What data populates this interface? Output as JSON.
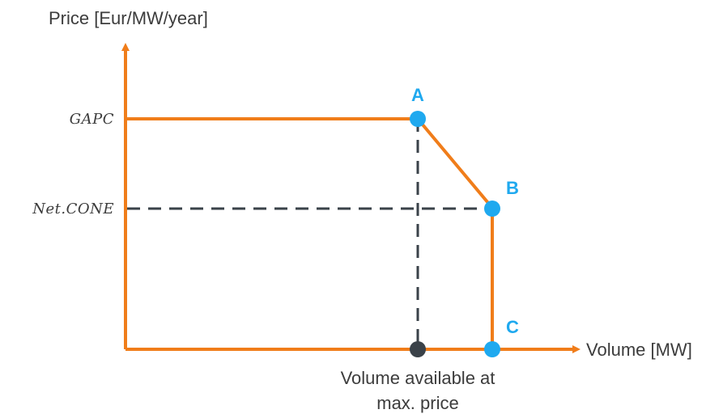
{
  "colors": {
    "axis": "#f07d1a",
    "curve": "#f07d1a",
    "guide": "#3a4249",
    "point": "#1fa9ef",
    "label_point": "#1fa9ef",
    "text": "#3c3c3c"
  },
  "axes": {
    "y_title": "Price [Eur/MW/year]",
    "x_title": "Volume [MW]"
  },
  "y_levels": {
    "gapc": "GAPC",
    "net_cone": "Net.CONE"
  },
  "points": {
    "a": "A",
    "b": "B",
    "c": "C"
  },
  "caption": {
    "line1": "Volume available at",
    "line2": "max. price"
  }
}
